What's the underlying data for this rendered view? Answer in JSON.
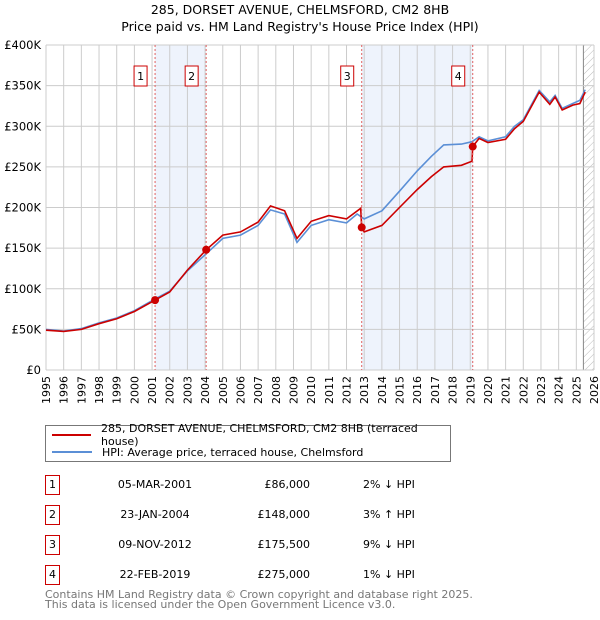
{
  "chart_data": {
    "type": "line",
    "title": "285, DORSET AVENUE, CHELMSFORD, CM2 8HB",
    "subtitle": "Price paid vs. HM Land Registry's House Price Index (HPI)",
    "xlim": [
      1995,
      2026
    ],
    "ylim": [
      0,
      400000
    ],
    "x_ticks": [
      "1995",
      "1996",
      "1997",
      "1998",
      "1999",
      "2000",
      "2001",
      "2002",
      "2003",
      "2004",
      "2005",
      "2006",
      "2007",
      "2008",
      "2009",
      "2010",
      "2011",
      "2012",
      "2013",
      "2014",
      "2015",
      "2016",
      "2017",
      "2018",
      "2019",
      "2020",
      "2021",
      "2022",
      "2023",
      "2024",
      "2025",
      "2026"
    ],
    "y_ticks": [
      {
        "v": 0,
        "label": "£0"
      },
      {
        "v": 50000,
        "label": "£50K"
      },
      {
        "v": 100000,
        "label": "£100K"
      },
      {
        "v": 150000,
        "label": "£150K"
      },
      {
        "v": 200000,
        "label": "£200K"
      },
      {
        "v": 250000,
        "label": "£250K"
      },
      {
        "v": 300000,
        "label": "£300K"
      },
      {
        "v": 350000,
        "label": "£350K"
      },
      {
        "v": 400000,
        "label": "£400K"
      }
    ],
    "grid": true,
    "shaded_ranges": [
      [
        2001.17,
        2004.06
      ],
      [
        2012.86,
        2019.14
      ]
    ],
    "hatched_from": 2025.4,
    "series": [
      {
        "name": "285, DORSET AVENUE, CHELMSFORD, CM2 8HB (terraced house)",
        "color": "#cc0000",
        "x": [
          1995,
          1996,
          1997,
          1998,
          1999,
          2000,
          2001.17,
          2002,
          2003,
          2004.06,
          2005,
          2006,
          2007,
          2007.7,
          2008.5,
          2009.2,
          2010,
          2011,
          2012,
          2012.8,
          2012.86,
          2013,
          2014,
          2015,
          2016,
          2016.8,
          2017.5,
          2018.5,
          2019.1,
          2019.14,
          2019.5,
          2020,
          2021,
          2021.5,
          2022,
          2022.9,
          2023.5,
          2023.8,
          2024.2,
          2024.8,
          2025.2,
          2025.5
        ],
        "y": [
          49000,
          47500,
          50000,
          57000,
          63000,
          72000,
          86000,
          96000,
          123000,
          148000,
          166000,
          170000,
          182000,
          202000,
          196000,
          162000,
          183000,
          190000,
          186000,
          199000,
          175500,
          170000,
          178000,
          200000,
          222000,
          238000,
          250000,
          252000,
          257000,
          275000,
          285000,
          280000,
          284000,
          297000,
          306000,
          342000,
          327000,
          336000,
          320000,
          326000,
          328000,
          342000
        ]
      },
      {
        "name": "HPI: Average price, terraced house, Chelmsford",
        "color": "#5b8fd6",
        "x": [
          1995,
          1996,
          1997,
          1998,
          1999,
          2000,
          2001.17,
          2002,
          2003,
          2004.06,
          2005,
          2006,
          2007,
          2007.7,
          2008.5,
          2009.2,
          2010,
          2011,
          2012,
          2012.6,
          2013,
          2014,
          2015,
          2016,
          2016.8,
          2017.5,
          2018.5,
          2019.1,
          2019.5,
          2020,
          2021,
          2021.5,
          2022,
          2022.9,
          2023.5,
          2023.8,
          2024.2,
          2024.8,
          2025.2,
          2025.5
        ],
        "y": [
          50000,
          48000,
          51000,
          58000,
          64000,
          73000,
          87500,
          97000,
          122000,
          143000,
          162000,
          166000,
          178000,
          197000,
          192000,
          157000,
          178000,
          185000,
          181000,
          192000,
          186000,
          196000,
          220000,
          245000,
          263000,
          277000,
          278000,
          281000,
          287000,
          282000,
          287000,
          300000,
          308000,
          344000,
          330000,
          338000,
          322000,
          328000,
          332000,
          345000
        ]
      }
    ],
    "sales": [
      {
        "id": "1",
        "x": 2001.17,
        "y": 86000,
        "date": "05-MAR-2001",
        "price": "£86,000",
        "hpi": "2% ↓ HPI"
      },
      {
        "id": "2",
        "x": 2004.06,
        "y": 148000,
        "date": "23-JAN-2004",
        "price": "£148,000",
        "hpi": "3% ↑ HPI"
      },
      {
        "id": "3",
        "x": 2012.86,
        "y": 175500,
        "date": "09-NOV-2012",
        "price": "£175,500",
        "hpi": "9% ↓ HPI"
      },
      {
        "id": "4",
        "x": 2019.14,
        "y": 275000,
        "date": "22-FEB-2019",
        "price": "£275,000",
        "hpi": "1% ↓ HPI"
      }
    ]
  },
  "legend": {
    "property": "285, DORSET AVENUE, CHELMSFORD, CM2 8HB (terraced house)",
    "hpi": "HPI: Average price, terraced house, Chelmsford"
  },
  "footer": {
    "line1": "Contains HM Land Registry data © Crown copyright and database right 2025.",
    "line2": "This data is licensed under the Open Government Licence v3.0."
  }
}
